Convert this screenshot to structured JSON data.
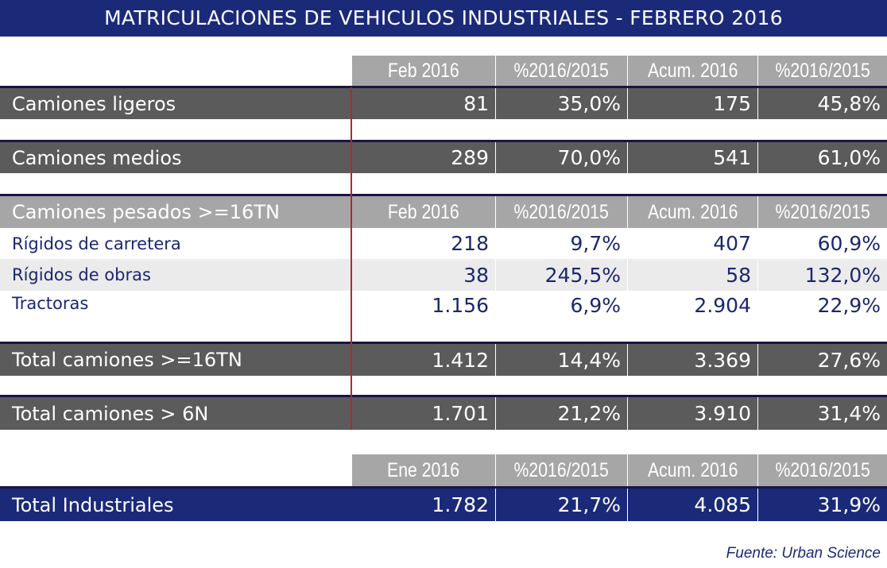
{
  "title": "MATRICULACIONES DE VEHICULOS INDUSTRIALES - FEBRERO 2016",
  "header_feb": [
    "Feb 2016",
    "%2016/2015",
    "Acum. 2016",
    "%2016/2015"
  ],
  "rows": {
    "ligeros": {
      "label": "Camiones ligeros",
      "values": [
        "81",
        "35,0%",
        "175",
        "45,8%"
      ]
    },
    "medios": {
      "label": "Camiones medios",
      "values": [
        "289",
        "70,0%",
        "541",
        "61,0%"
      ]
    },
    "pesados_header": {
      "label": "Camiones pesados >=16TN",
      "values": [
        "Feb 2016",
        "%2016/2015",
        "Acum. 2016",
        "%2016/2015"
      ]
    },
    "rigidos_carretera": {
      "label": "Rígidos de carretera",
      "values": [
        "218",
        "9,7%",
        "407",
        "60,9%"
      ]
    },
    "rigidos_obras": {
      "label": "Rígidos de obras",
      "values": [
        "38",
        "245,5%",
        "58",
        "132,0%"
      ]
    },
    "tractoras": {
      "label": "Tractoras",
      "values": [
        "1.156",
        "6,9%",
        "2.904",
        "22,9%"
      ]
    },
    "total_16tn": {
      "label": "Total camiones >=16TN",
      "values": [
        "1.412",
        "14,4%",
        "3.369",
        "27,6%"
      ]
    },
    "total_6n": {
      "label": "Total camiones > 6N",
      "values": [
        "1.701",
        "21,2%",
        "3.910",
        "31,4%"
      ]
    },
    "industriales": {
      "label": "Total Industriales",
      "values": [
        "1.782",
        "21,7%",
        "4.085",
        "31,9%"
      ]
    }
  },
  "header_ene": [
    "Ene 2016",
    "%2016/2015",
    "Acum. 2016",
    "%2016/2015"
  ],
  "source": "Fuente: Urban Science",
  "colors": {
    "navy": "#1b2a78",
    "dark_row": "#5b5b5b",
    "header_gray": "#a6a6a6",
    "red_divider": "#b7262b"
  }
}
